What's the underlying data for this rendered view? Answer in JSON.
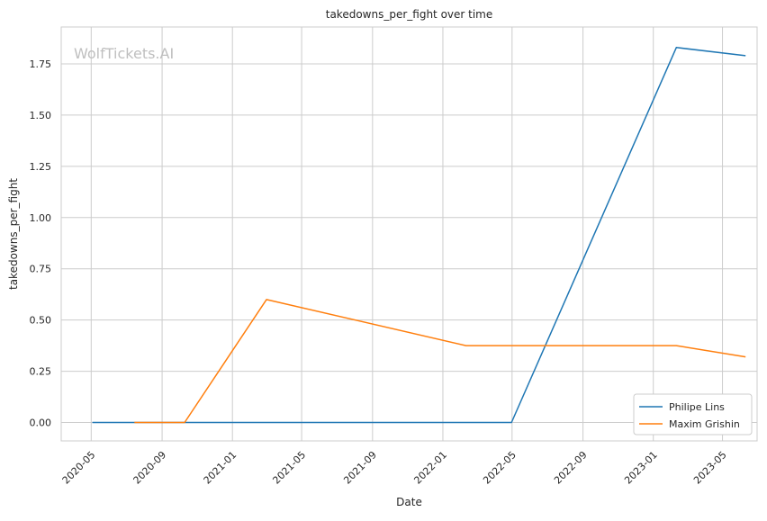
{
  "chart_data": {
    "type": "line",
    "title": "takedowns_per_fight over time",
    "xlabel": "Date",
    "ylabel": "takedowns_per_fight",
    "watermark": "WolfTickets.AI",
    "x_axis": {
      "type": "date",
      "range": [
        "2020-03-10",
        "2023-06-30"
      ],
      "ticks": [
        "2020-05",
        "2020-09",
        "2021-01",
        "2021-05",
        "2021-09",
        "2022-01",
        "2022-05",
        "2022-09",
        "2023-01",
        "2023-05"
      ]
    },
    "y_axis": {
      "range": [
        -0.09,
        1.93
      ],
      "ticks": [
        "0.00",
        "0.25",
        "0.50",
        "0.75",
        "1.00",
        "1.25",
        "1.50",
        "1.75"
      ]
    },
    "grid": true,
    "legend_position": "bottom-right",
    "series": [
      {
        "name": "Philipe Lins",
        "color": "#1f77b4",
        "points": [
          {
            "x": "2020-05-03",
            "y": 0.0
          },
          {
            "x": "2022-04-30",
            "y": 0.0
          },
          {
            "x": "2023-02-10",
            "y": 1.83
          },
          {
            "x": "2023-06-10",
            "y": 1.79
          }
        ]
      },
      {
        "name": "Maxim Grishin",
        "color": "#ff7f0e",
        "points": [
          {
            "x": "2020-07-15",
            "y": 0.0
          },
          {
            "x": "2020-10-10",
            "y": 0.0
          },
          {
            "x": "2021-03-01",
            "y": 0.6
          },
          {
            "x": "2022-02-10",
            "y": 0.375
          },
          {
            "x": "2023-02-10",
            "y": 0.375
          },
          {
            "x": "2023-06-10",
            "y": 0.32
          }
        ]
      }
    ]
  }
}
